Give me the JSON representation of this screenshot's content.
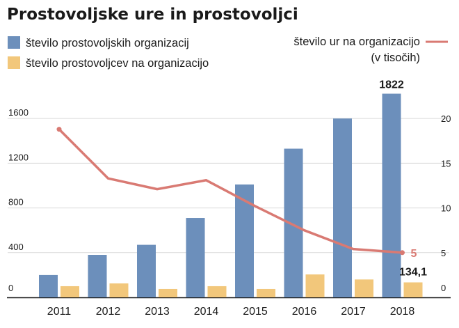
{
  "chart_data": {
    "type": "bar",
    "title": "Prostovoljske ure in prostovoljci",
    "categories": [
      "2011",
      "2012",
      "2013",
      "2014",
      "2015",
      "2016",
      "2017",
      "2018"
    ],
    "series": [
      {
        "name": "število prostovoljskih organizacij",
        "type": "bar",
        "axis": "left",
        "color": "#6c8fbb",
        "values": [
          200,
          380,
          470,
          710,
          1010,
          1330,
          1600,
          1822
        ]
      },
      {
        "name": "število prostovoljcev na organizacijo",
        "type": "bar",
        "axis": "left",
        "color": "#f2c77b",
        "values": [
          100,
          125,
          75,
          100,
          75,
          205,
          160,
          134.1
        ]
      },
      {
        "name": "število ur na organizacijo",
        "name_line2": "(v tisočih)",
        "type": "line",
        "axis": "right",
        "color": "#d97a73",
        "values": [
          18.8,
          13.3,
          12.1,
          13.1,
          10.2,
          7.5,
          5.4,
          5
        ]
      }
    ],
    "y_left": {
      "ticks": [
        0,
        400,
        800,
        1200,
        1600
      ],
      "range": [
        0,
        1950
      ]
    },
    "y_right": {
      "ticks": [
        0,
        5,
        10,
        15,
        20
      ],
      "range": [
        0,
        24.375
      ]
    },
    "annotations": [
      {
        "series": 0,
        "index": 7,
        "label": "1822"
      },
      {
        "series": 1,
        "index": 7,
        "label": "134,1"
      },
      {
        "series": 2,
        "index": 7,
        "label": "5"
      }
    ],
    "grid": true,
    "legend": "top"
  }
}
